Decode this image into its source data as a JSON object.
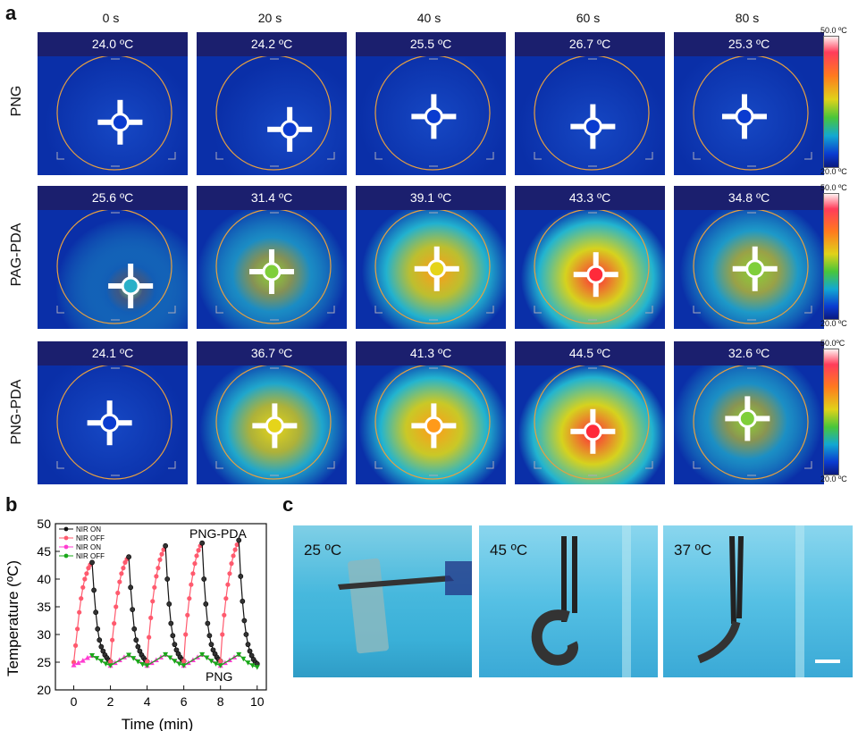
{
  "panel_a": {
    "letter": "a",
    "times": [
      "0 s",
      "20 s",
      "40 s",
      "60 s",
      "80 s"
    ],
    "rows": [
      {
        "label": "PNG",
        "temps": [
          "24.0 ºC",
          "24.2 ºC",
          "25.5 ºC",
          "26.7 ºC",
          "25.3 ºC"
        ],
        "heat": [
          0,
          0,
          0,
          0,
          0
        ]
      },
      {
        "label": "PAG-PDA",
        "temps": [
          "25.6 ºC",
          "31.4 ºC",
          "39.1 ºC",
          "43.3 ºC",
          "34.8 ºC"
        ],
        "heat": [
          0.05,
          0.4,
          0.68,
          0.85,
          0.5
        ]
      },
      {
        "label": "PNG-PDA",
        "temps": [
          "24.1 ºC",
          "36.7 ºC",
          "41.3 ºC",
          "44.5 ºC",
          "32.6 ºC"
        ],
        "heat": [
          0,
          0.6,
          0.74,
          0.9,
          0.42
        ]
      }
    ],
    "scale_max": "50.0 ºC",
    "scale_min": "20.0 ºC",
    "scale_max_2": "50.0 ºC",
    "scale_min_2": "20.0 ºC",
    "scale_max_3": "50.0ºC",
    "scale_min_3": "20.0 ºC"
  },
  "panel_b": {
    "letter": "b",
    "chart_data": {
      "type": "line",
      "xlabel": "Time (min)",
      "ylabel": "Temperature (ºC)",
      "xlim": [
        -1,
        10.5
      ],
      "ylim": [
        20,
        50
      ],
      "xticks": [
        "0",
        "2",
        "4",
        "6",
        "8",
        "10"
      ],
      "yticks": [
        "20",
        "25",
        "30",
        "35",
        "40",
        "45",
        "50"
      ],
      "annotations": [
        "PNG-PDA",
        "PNG"
      ],
      "legend": [
        "NIR ON",
        "NIR OFF",
        "NIR ON",
        "NIR OFF"
      ],
      "series": [
        {
          "name": "NIR ON",
          "color": "#ff5a6e",
          "x": [
            0,
            0.1,
            0.2,
            0.3,
            0.4,
            0.5,
            0.6,
            0.7,
            0.8,
            0.9,
            1.0
          ],
          "y": [
            25,
            28,
            31,
            34,
            36.5,
            38.5,
            40,
            41,
            42,
            42.6,
            43
          ]
        },
        {
          "name": "NIR OFF",
          "color": "#111111",
          "x": [
            1.0,
            1.1,
            1.2,
            1.3,
            1.4,
            1.5,
            1.6,
            1.7,
            1.8,
            1.9,
            2.0
          ],
          "y": [
            43,
            38,
            34,
            31,
            29,
            27.8,
            27,
            26.3,
            25.8,
            25.4,
            25.1
          ]
        },
        {
          "name": "NIR ON",
          "color": "#ff5a6e",
          "x": [
            2.0,
            2.1,
            2.2,
            2.3,
            2.4,
            2.5,
            2.6,
            2.7,
            2.8,
            2.9,
            3.0
          ],
          "y": [
            25.1,
            29,
            32,
            35,
            37.5,
            39.5,
            41,
            42,
            43,
            43.6,
            44
          ]
        },
        {
          "name": "NIR OFF",
          "color": "#111111",
          "x": [
            3.0,
            3.1,
            3.2,
            3.3,
            3.4,
            3.5,
            3.6,
            3.7,
            3.8,
            3.9,
            4.0
          ],
          "y": [
            44,
            38.5,
            34.5,
            31,
            29,
            27.8,
            27,
            26.3,
            25.8,
            25.4,
            25.1
          ]
        },
        {
          "name": "NIR ON",
          "color": "#ff5a6e",
          "x": [
            4.0,
            4.1,
            4.2,
            4.3,
            4.4,
            4.5,
            4.6,
            4.7,
            4.8,
            4.9,
            5.0
          ],
          "y": [
            25.1,
            29.5,
            33,
            36,
            38.5,
            40.5,
            42,
            43.5,
            44.5,
            45.3,
            46
          ]
        },
        {
          "name": "NIR OFF",
          "color": "#111111",
          "x": [
            5.0,
            5.1,
            5.2,
            5.3,
            5.4,
            5.5,
            5.6,
            5.7,
            5.8,
            5.9,
            6.0
          ],
          "y": [
            46,
            40,
            35.5,
            32,
            29.8,
            28.2,
            27.2,
            26.5,
            25.9,
            25.5,
            25.2
          ]
        },
        {
          "name": "NIR ON",
          "color": "#ff5a6e",
          "x": [
            6.0,
            6.1,
            6.2,
            6.3,
            6.4,
            6.5,
            6.6,
            6.7,
            6.8,
            6.9,
            7.0
          ],
          "y": [
            25.2,
            30,
            33.5,
            36.5,
            39,
            41,
            42.8,
            44.2,
            45.2,
            46,
            46.5
          ]
        },
        {
          "name": "NIR OFF",
          "color": "#111111",
          "x": [
            7.0,
            7.1,
            7.2,
            7.3,
            7.4,
            7.5,
            7.6,
            7.7,
            7.8,
            7.9,
            8.0
          ],
          "y": [
            46.5,
            40,
            35.5,
            32,
            29.8,
            28.2,
            27.2,
            26.5,
            25.9,
            25.5,
            25.2
          ]
        },
        {
          "name": "NIR ON",
          "color": "#ff5a6e",
          "x": [
            8.0,
            8.1,
            8.2,
            8.3,
            8.4,
            8.5,
            8.6,
            8.7,
            8.8,
            8.9,
            9.0
          ],
          "y": [
            25.2,
            30,
            33.5,
            36.5,
            39,
            41,
            42.8,
            44.2,
            45.3,
            46.2,
            47
          ]
        },
        {
          "name": "NIR OFF",
          "color": "#111111",
          "x": [
            9.0,
            9.1,
            9.2,
            9.3,
            9.4,
            9.5,
            9.6,
            9.7,
            9.8,
            9.9,
            10.0
          ],
          "y": [
            47,
            40.5,
            36,
            32.5,
            30,
            28.2,
            27,
            26.2,
            25.5,
            25,
            24.7
          ]
        },
        {
          "name": "NIR ON",
          "color": "#ff3cd0",
          "x": [
            0,
            0.25,
            0.5,
            0.75,
            1.0,
            2.0,
            2.25,
            2.5,
            2.75,
            3.0,
            4.0,
            4.25,
            4.5,
            4.75,
            5.0,
            6.0,
            6.25,
            6.5,
            6.75,
            7.0,
            8.0,
            8.25,
            8.5,
            8.75,
            9.0
          ],
          "y": [
            24.5,
            24.9,
            25.3,
            25.8,
            26.2,
            24.4,
            24.9,
            25.4,
            25.9,
            26.3,
            24.4,
            24.9,
            25.4,
            25.9,
            26.4,
            24.4,
            24.9,
            25.4,
            25.9,
            26.4,
            24.4,
            24.9,
            25.4,
            25.9,
            26.4
          ]
        },
        {
          "name": "NIR OFF",
          "color": "#1aa81a",
          "x": [
            1.0,
            1.25,
            1.5,
            1.75,
            2.0,
            3.0,
            3.25,
            3.5,
            3.75,
            4.0,
            5.0,
            5.25,
            5.5,
            5.75,
            6.0,
            7.0,
            7.25,
            7.5,
            7.75,
            8.0,
            9.0,
            9.25,
            9.5,
            9.75,
            10.0
          ],
          "y": [
            26.2,
            25.7,
            25.2,
            24.7,
            24.4,
            26.3,
            25.7,
            25.1,
            24.6,
            24.4,
            26.4,
            25.8,
            25.2,
            24.7,
            24.4,
            26.4,
            25.8,
            25.2,
            24.7,
            24.4,
            26.4,
            25.6,
            24.9,
            24.4,
            24.1
          ]
        }
      ]
    }
  },
  "panel_c": {
    "letter": "c",
    "photos": [
      {
        "temp": "25 ºC"
      },
      {
        "temp": "45 ºC"
      },
      {
        "temp": "37 ºC"
      }
    ]
  }
}
